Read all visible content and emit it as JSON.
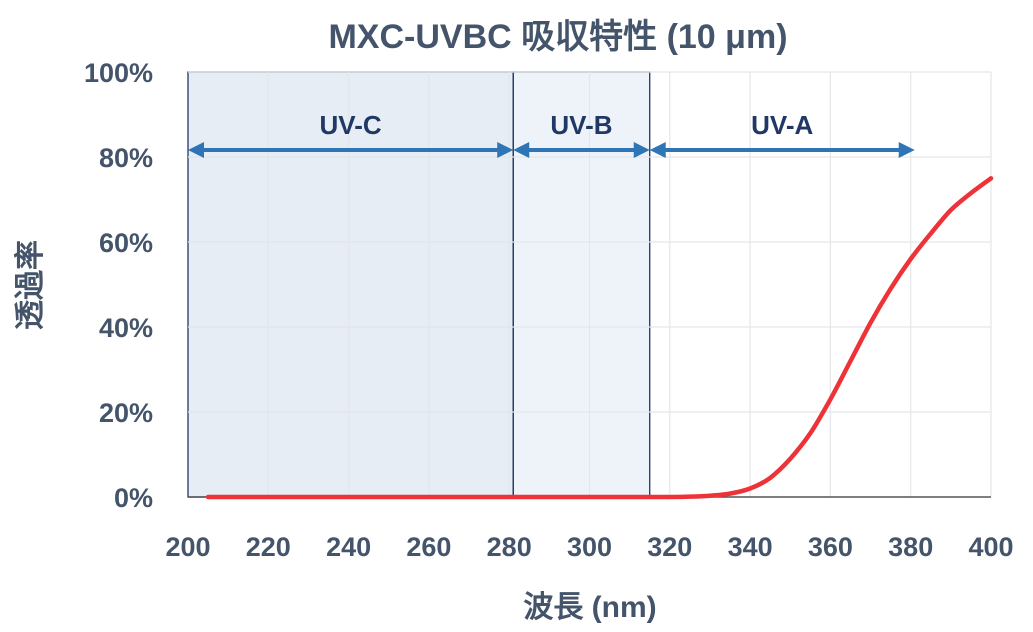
{
  "chart_data": {
    "type": "line",
    "title": "MXC-UVBC 吸収特性 (10 μm)",
    "xlabel": "波長 (nm)",
    "ylabel": "透過率",
    "xlim": [
      200,
      400
    ],
    "ylim": [
      0,
      100
    ],
    "xticks": [
      200,
      220,
      240,
      260,
      280,
      300,
      320,
      340,
      360,
      380,
      400
    ],
    "yticks": [
      0,
      20,
      40,
      60,
      80,
      100
    ],
    "yticklabels": [
      "0%",
      "20%",
      "40%",
      "60%",
      "80%",
      "100%"
    ],
    "grid": true,
    "bands": [
      {
        "label": "UV-C",
        "from": 200,
        "to": 281,
        "fill": "#e6edf5"
      },
      {
        "label": "UV-B",
        "from": 281,
        "to": 315,
        "fill": "#eef3f9"
      },
      {
        "label": "UV-A",
        "from": 315,
        "to": 400,
        "fill": "#ffffff",
        "arrow_to": 381
      }
    ],
    "series": [
      {
        "color": "#ee3338",
        "x": [
          205,
          280,
          315,
          320,
          325,
          330,
          335,
          340,
          345,
          350,
          355,
          360,
          365,
          370,
          375,
          380,
          385,
          390,
          395,
          400
        ],
        "y": [
          0,
          0,
          0,
          0,
          0.1,
          0.3,
          0.8,
          2,
          4.5,
          9,
          15,
          23,
          32,
          41,
          49,
          56,
          62,
          67.5,
          71.5,
          75
        ]
      }
    ]
  },
  "colors": {
    "text": "#44546a",
    "band_label": "#1f3864",
    "arrow": "#2e75b6",
    "grid": "#e4e6e9",
    "frame": "#1f3864"
  }
}
